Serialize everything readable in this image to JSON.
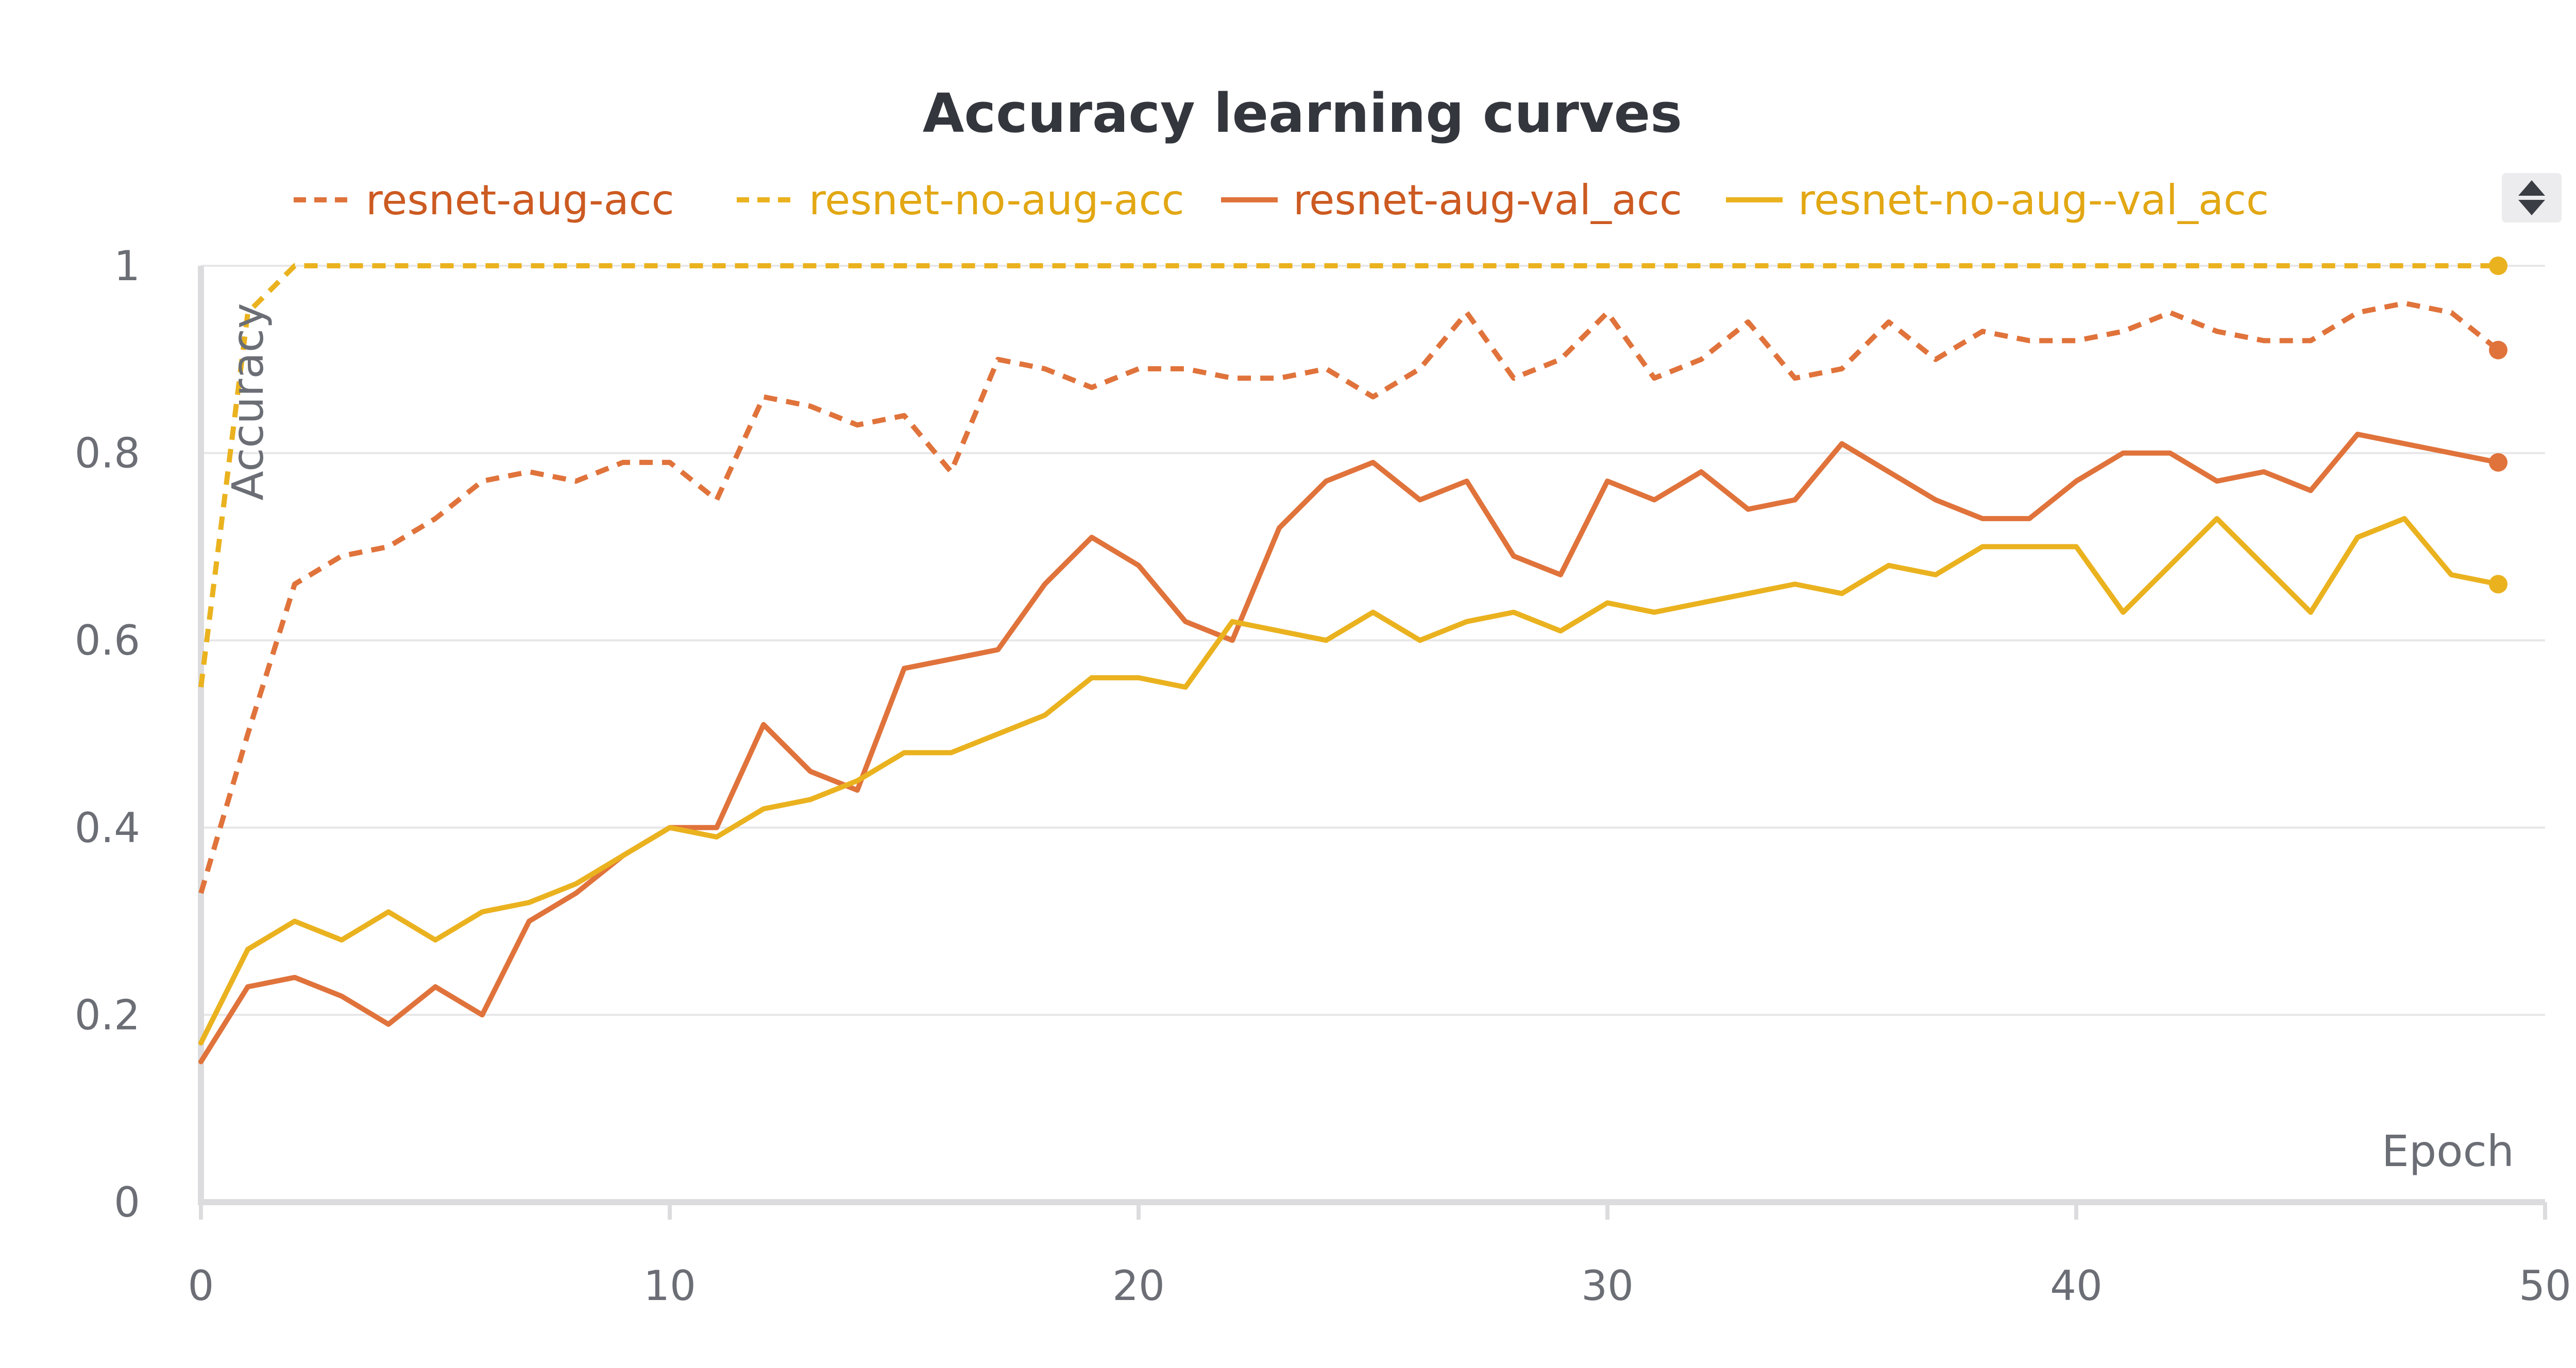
{
  "chart_data": {
    "type": "line",
    "title": "Accuracy learning curves",
    "xlabel": "Epoch",
    "ylabel": "Accuracy",
    "xlim": [
      0,
      50
    ],
    "ylim": [
      0,
      1
    ],
    "xticks": [
      0,
      10,
      20,
      30,
      40,
      50
    ],
    "yticks": [
      0,
      0.2,
      0.4,
      0.6,
      0.8,
      1
    ],
    "ytick_labels": [
      "0",
      "0.2",
      "0.4",
      "0.6",
      "0.8",
      "1"
    ],
    "grid": true,
    "legend_position": "top",
    "x": [
      0,
      1,
      2,
      3,
      4,
      5,
      6,
      7,
      8,
      9,
      10,
      11,
      12,
      13,
      14,
      15,
      16,
      17,
      18,
      19,
      20,
      21,
      22,
      23,
      24,
      25,
      26,
      27,
      28,
      29,
      30,
      31,
      32,
      33,
      34,
      35,
      36,
      37,
      38,
      39,
      40,
      41,
      42,
      43,
      44,
      45,
      46,
      47,
      48,
      49
    ],
    "series": [
      {
        "name": "resnet-aug-acc",
        "color": "#e0733b",
        "dashed": true,
        "values": [
          0.33,
          0.5,
          0.66,
          0.69,
          0.7,
          0.73,
          0.77,
          0.78,
          0.77,
          0.79,
          0.79,
          0.75,
          0.86,
          0.85,
          0.83,
          0.84,
          0.78,
          0.9,
          0.89,
          0.87,
          0.89,
          0.89,
          0.88,
          0.88,
          0.89,
          0.86,
          0.89,
          0.95,
          0.88,
          0.9,
          0.95,
          0.88,
          0.9,
          0.94,
          0.88,
          0.89,
          0.94,
          0.9,
          0.93,
          0.92,
          0.92,
          0.93,
          0.95,
          0.93,
          0.92,
          0.92,
          0.95,
          0.96,
          0.95,
          0.91
        ]
      },
      {
        "name": "resnet-no-aug-acc",
        "color": "#eab21f",
        "dashed": true,
        "values": [
          0.55,
          0.95,
          1.0,
          1.0,
          1.0,
          1.0,
          1.0,
          1.0,
          1.0,
          1.0,
          1.0,
          1.0,
          1.0,
          1.0,
          1.0,
          1.0,
          1.0,
          1.0,
          1.0,
          1.0,
          1.0,
          1.0,
          1.0,
          1.0,
          1.0,
          1.0,
          1.0,
          1.0,
          1.0,
          1.0,
          1.0,
          1.0,
          1.0,
          1.0,
          1.0,
          1.0,
          1.0,
          1.0,
          1.0,
          1.0,
          1.0,
          1.0,
          1.0,
          1.0,
          1.0,
          1.0,
          1.0,
          1.0,
          1.0,
          1.0
        ]
      },
      {
        "name": "resnet-aug-val_acc",
        "color": "#e0733b",
        "dashed": false,
        "values": [
          0.15,
          0.23,
          0.24,
          0.22,
          0.19,
          0.23,
          0.2,
          0.3,
          0.33,
          0.37,
          0.4,
          0.4,
          0.51,
          0.46,
          0.44,
          0.57,
          0.58,
          0.59,
          0.66,
          0.71,
          0.68,
          0.62,
          0.6,
          0.72,
          0.77,
          0.79,
          0.75,
          0.77,
          0.69,
          0.67,
          0.77,
          0.75,
          0.78,
          0.74,
          0.75,
          0.81,
          0.78,
          0.75,
          0.73,
          0.73,
          0.77,
          0.8,
          0.8,
          0.77,
          0.78,
          0.76,
          0.82,
          0.81,
          0.8,
          0.79
        ]
      },
      {
        "name": "resnet-no-aug--val_acc",
        "color": "#eab21f",
        "dashed": false,
        "values": [
          0.17,
          0.27,
          0.3,
          0.28,
          0.31,
          0.28,
          0.31,
          0.32,
          0.34,
          0.37,
          0.4,
          0.39,
          0.42,
          0.43,
          0.45,
          0.48,
          0.48,
          0.5,
          0.52,
          0.56,
          0.56,
          0.55,
          0.62,
          0.61,
          0.6,
          0.63,
          0.6,
          0.62,
          0.63,
          0.61,
          0.64,
          0.63,
          0.64,
          0.65,
          0.66,
          0.65,
          0.68,
          0.67,
          0.7,
          0.7,
          0.7,
          0.63,
          0.68,
          0.73,
          0.68,
          0.63,
          0.71,
          0.73,
          0.67,
          0.66
        ]
      }
    ]
  },
  "legend_scroll": {
    "up_icon": "chevron-up-icon",
    "down_icon": "chevron-down-icon"
  }
}
